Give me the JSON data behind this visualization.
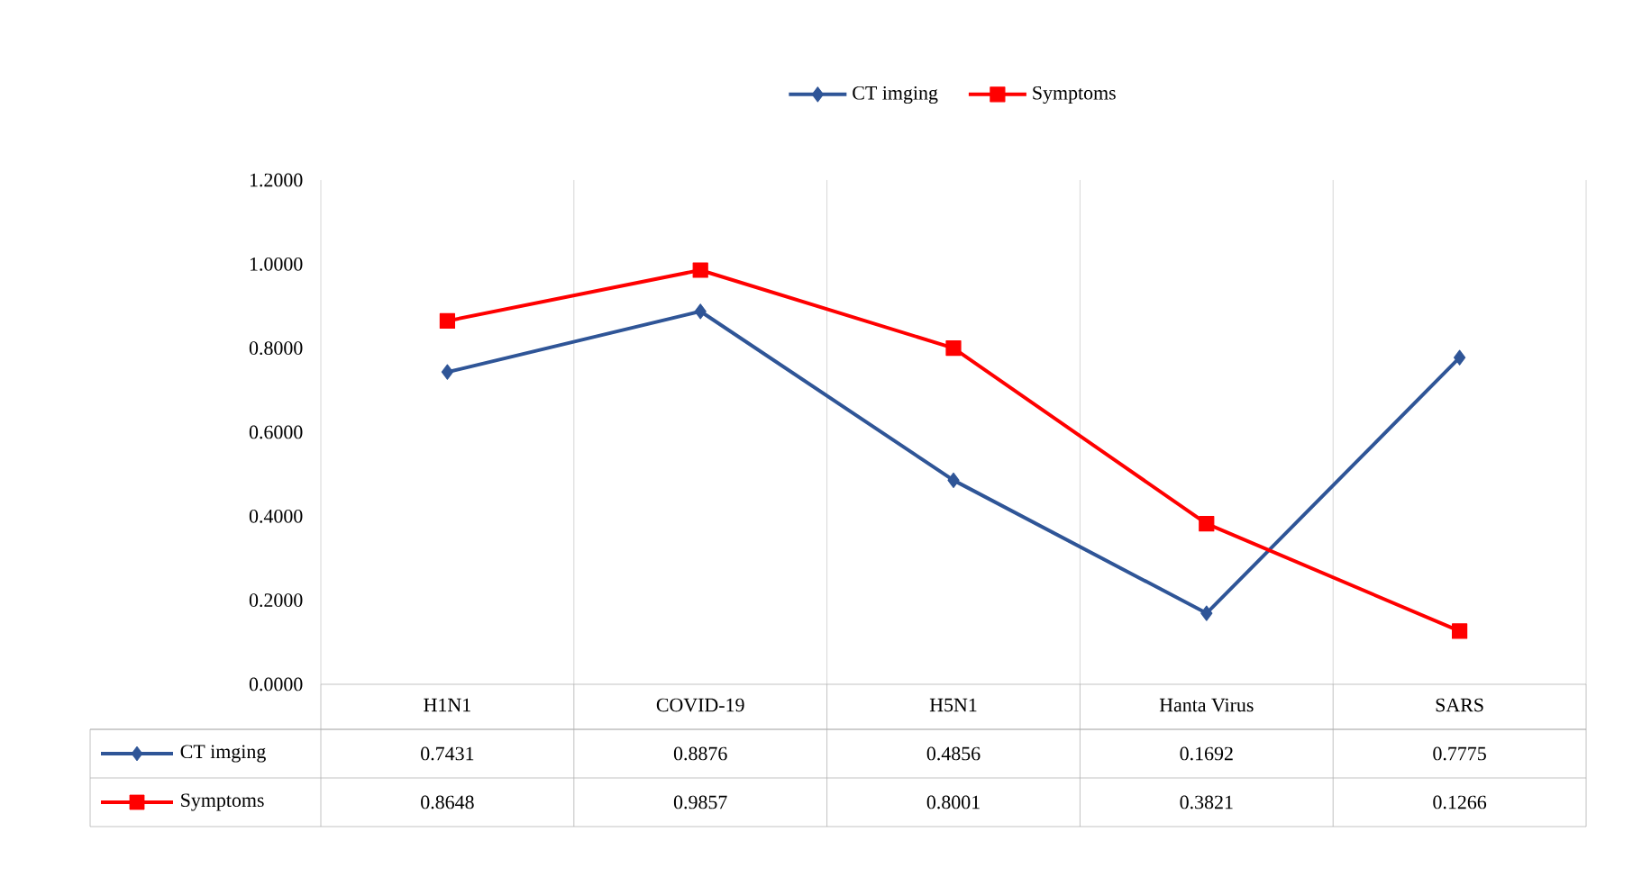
{
  "chart_data": {
    "type": "line",
    "categories": [
      "H1N1",
      "COVID-19",
      "H5N1",
      "Hanta Virus",
      "SARS"
    ],
    "series": [
      {
        "name": "CT imging",
        "color": "#2f5597",
        "marker": "diamond",
        "values": [
          0.7431,
          0.8876,
          0.4856,
          0.1692,
          0.7775
        ]
      },
      {
        "name": "Symptoms",
        "color": "#ff0000",
        "marker": "square",
        "values": [
          0.8648,
          0.9857,
          0.8001,
          0.3821,
          0.1266
        ]
      }
    ],
    "ylim": [
      0,
      1.2
    ],
    "yticks": [
      {
        "value": 0,
        "label": "0.0000"
      },
      {
        "value": 0.2,
        "label": "0.2000"
      },
      {
        "value": 0.4,
        "label": "0.4000"
      },
      {
        "value": 0.6,
        "label": "0.6000"
      },
      {
        "value": 0.8,
        "label": "0.8000"
      },
      {
        "value": 1.0,
        "label": "1.0000"
      },
      {
        "value": 1.2,
        "label": "1.2000"
      }
    ],
    "grid": "x",
    "legend": "top",
    "line_style": "solid",
    "data_labels": true
  }
}
